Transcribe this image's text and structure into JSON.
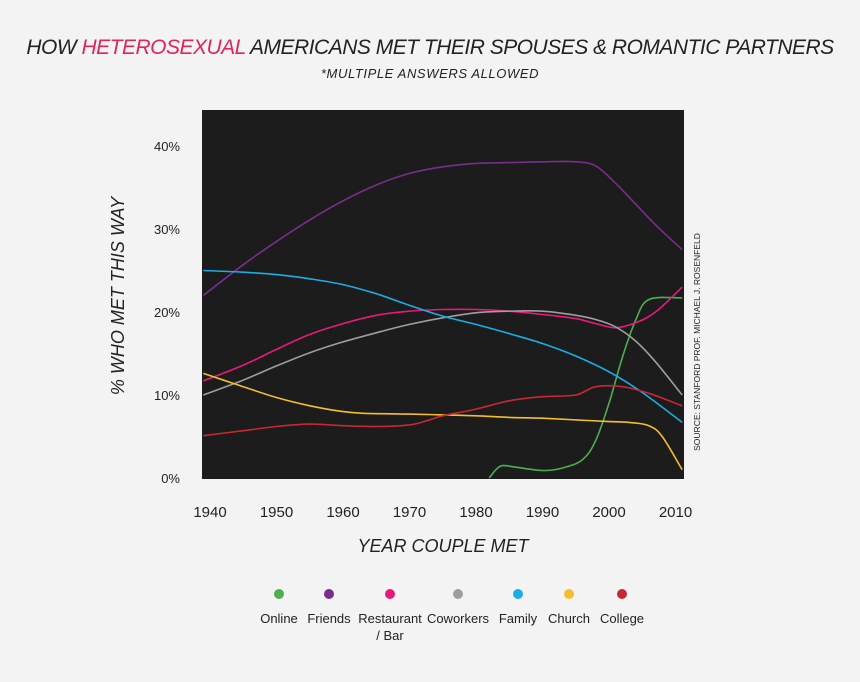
{
  "title_plain": "HOW ",
  "title_highlight": "HETEROSEXUAL",
  "title_rest": " AMERICANS MET THEIR SPOUSES & ROMANTIC PARTNERS",
  "subtitle": "*MULTIPLE ANSWERS ALLOWED",
  "source": "SOURCE: STANFORD PROF. MICHAEL J. ROSENFELD",
  "chart_data": {
    "type": "line",
    "title": "HOW HETEROSEXUAL AMERICANS MET THEIR SPOUSES & ROMANTIC PARTNERS",
    "xlabel": "YEAR COUPLE MET",
    "ylabel": "% WHO MET THIS WAY",
    "xlim": [
      1939,
      2011
    ],
    "ylim": [
      0,
      44
    ],
    "x_ticks": [
      "1940",
      "1950",
      "1960",
      "1970",
      "1980",
      "1990",
      "2000",
      "2010"
    ],
    "y_ticks": [
      "0%",
      "10%",
      "20%",
      "30%",
      "40%"
    ],
    "series": [
      {
        "name": "Online",
        "color": "#4caf50",
        "points": [
          [
            1982,
            0
          ],
          [
            1983,
            1.0
          ],
          [
            1984,
            1.5
          ],
          [
            1986,
            1.3
          ],
          [
            1990,
            0.9
          ],
          [
            1993,
            1.2
          ],
          [
            1996,
            2.2
          ],
          [
            1998,
            4.5
          ],
          [
            2000,
            9
          ],
          [
            2002,
            14.5
          ],
          [
            2004,
            19
          ],
          [
            2006,
            21.5
          ],
          [
            2011,
            21.7
          ]
        ]
      },
      {
        "name": "Friends",
        "color": "#7b2d8e",
        "points": [
          [
            1939,
            22
          ],
          [
            1945,
            25.7
          ],
          [
            1950,
            28.5
          ],
          [
            1955,
            31.1
          ],
          [
            1960,
            33.4
          ],
          [
            1965,
            35.3
          ],
          [
            1970,
            36.7
          ],
          [
            1975,
            37.5
          ],
          [
            1980,
            37.9
          ],
          [
            1985,
            38
          ],
          [
            1990,
            38.1
          ],
          [
            1995,
            38.1
          ],
          [
            1998,
            37.6
          ],
          [
            2001,
            35.5
          ],
          [
            2004,
            33
          ],
          [
            2007,
            30.5
          ],
          [
            2011,
            27.5
          ]
        ]
      },
      {
        "name": "Restaurant / Bar",
        "color": "#e8197d",
        "points": [
          [
            1939,
            11.7
          ],
          [
            1945,
            13.6
          ],
          [
            1950,
            15.5
          ],
          [
            1955,
            17.3
          ],
          [
            1960,
            18.6
          ],
          [
            1965,
            19.6
          ],
          [
            1970,
            20.1
          ],
          [
            1975,
            20.3
          ],
          [
            1980,
            20.3
          ],
          [
            1985,
            20.1
          ],
          [
            1990,
            19.7
          ],
          [
            1995,
            19.2
          ],
          [
            1998,
            18.6
          ],
          [
            2001,
            18.1
          ],
          [
            2004,
            18.7
          ],
          [
            2007,
            20
          ],
          [
            2011,
            23
          ]
        ]
      },
      {
        "name": "Coworkers",
        "color": "#9e9e9e",
        "points": [
          [
            1939,
            10
          ],
          [
            1945,
            11.8
          ],
          [
            1950,
            13.5
          ],
          [
            1955,
            15.1
          ],
          [
            1960,
            16.4
          ],
          [
            1965,
            17.5
          ],
          [
            1970,
            18.5
          ],
          [
            1975,
            19.3
          ],
          [
            1980,
            19.9
          ],
          [
            1985,
            20.1
          ],
          [
            1990,
            20.1
          ],
          [
            1995,
            19.6
          ],
          [
            1998,
            19.1
          ],
          [
            2001,
            18.2
          ],
          [
            2004,
            16.5
          ],
          [
            2007,
            14
          ],
          [
            2011,
            10
          ]
        ]
      },
      {
        "name": "Family",
        "color": "#1aaee6",
        "points": [
          [
            1939,
            25
          ],
          [
            1945,
            24.8
          ],
          [
            1950,
            24.5
          ],
          [
            1955,
            24
          ],
          [
            1960,
            23.3
          ],
          [
            1965,
            22.2
          ],
          [
            1970,
            20.8
          ],
          [
            1975,
            19.5
          ],
          [
            1980,
            18.5
          ],
          [
            1985,
            17.4
          ],
          [
            1990,
            16.2
          ],
          [
            1995,
            14.7
          ],
          [
            2000,
            12.8
          ],
          [
            2005,
            10.3
          ],
          [
            2011,
            6.7
          ]
        ]
      },
      {
        "name": "Church",
        "color": "#f5be2e",
        "points": [
          [
            1939,
            12.6
          ],
          [
            1945,
            11
          ],
          [
            1950,
            9.7
          ],
          [
            1955,
            8.7
          ],
          [
            1960,
            8
          ],
          [
            1963,
            7.8
          ],
          [
            1970,
            7.7
          ],
          [
            1975,
            7.6
          ],
          [
            1980,
            7.5
          ],
          [
            1985,
            7.3
          ],
          [
            1990,
            7.2
          ],
          [
            1995,
            7
          ],
          [
            2000,
            6.8
          ],
          [
            2003,
            6.7
          ],
          [
            2006,
            6.3
          ],
          [
            2008,
            5
          ],
          [
            2011,
            1
          ]
        ]
      },
      {
        "name": "College",
        "color": "#c62834",
        "points": [
          [
            1939,
            5.1
          ],
          [
            1945,
            5.7
          ],
          [
            1950,
            6.2
          ],
          [
            1955,
            6.5
          ],
          [
            1960,
            6.3
          ],
          [
            1965,
            6.2
          ],
          [
            1970,
            6.4
          ],
          [
            1973,
            7
          ],
          [
            1975,
            7.5
          ],
          [
            1980,
            8.3
          ],
          [
            1985,
            9.3
          ],
          [
            1990,
            9.8
          ],
          [
            1995,
            10
          ],
          [
            1998,
            11
          ],
          [
            2002,
            11
          ],
          [
            2006,
            10.2
          ],
          [
            2011,
            8.7
          ]
        ]
      }
    ],
    "legend": [
      {
        "label_line1": "Online",
        "label_line2": "",
        "color": "#4caf50"
      },
      {
        "label_line1": "Friends",
        "label_line2": "",
        "color": "#7b2d8e"
      },
      {
        "label_line1": "Restaurant",
        "label_line2": "/ Bar",
        "color": "#e8197d"
      },
      {
        "label_line1": "Coworkers",
        "label_line2": "",
        "color": "#9e9e9e"
      },
      {
        "label_line1": "Family",
        "label_line2": "",
        "color": "#1aaee6"
      },
      {
        "label_line1": "Church",
        "label_line2": "",
        "color": "#f5be2e"
      },
      {
        "label_line1": "College",
        "label_line2": "",
        "color": "#c62834"
      }
    ],
    "grid": false,
    "legend_position": "bottom",
    "background": "#1c1c1c"
  }
}
